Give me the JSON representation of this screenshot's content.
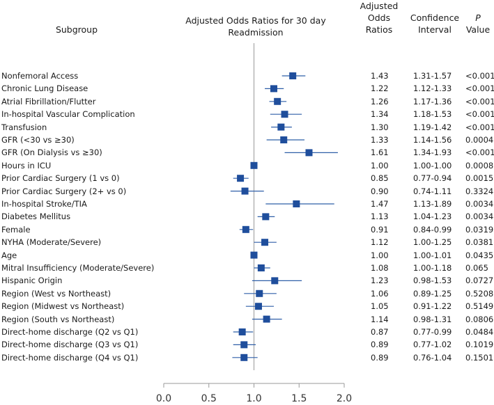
{
  "chart_data": {
    "type": "forest",
    "title": "Adjusted Odds Ratios for 30 day Readmission",
    "headers": {
      "subgroup": "Subgroup",
      "odds_ratio_line1": "Adjusted",
      "odds_ratio_line2": "Odds",
      "odds_ratio_line3": "Ratios",
      "ci_line1": "Confidence",
      "ci_line2": "Interval",
      "p_line1": "P",
      "p_line2": "Value"
    },
    "x_ticks": [
      "0.0",
      "0.5",
      "1.0",
      "1.5",
      "2.0"
    ],
    "xlim": [
      0,
      2
    ],
    "reference_line": 1.0,
    "rows": [
      {
        "label": "Nonfemoral Access",
        "or": 1.43,
        "low": 1.31,
        "high": 1.57,
        "or_text": "1.43",
        "ci_text": "1.31-1.57",
        "p_text": "<0.001"
      },
      {
        "label": "Chronic Lung Disease",
        "or": 1.22,
        "low": 1.12,
        "high": 1.33,
        "or_text": "1.22",
        "ci_text": "1.12-1.33",
        "p_text": "<0.001"
      },
      {
        "label": "Atrial Fibrillation/Flutter",
        "or": 1.26,
        "low": 1.17,
        "high": 1.36,
        "or_text": "1.26",
        "ci_text": "1.17-1.36",
        "p_text": "<0.001"
      },
      {
        "label": "In-hospital Vascular Complication",
        "or": 1.34,
        "low": 1.18,
        "high": 1.53,
        "or_text": "1.34",
        "ci_text": "1.18-1.53",
        "p_text": "<0.001"
      },
      {
        "label": "Transfusion",
        "or": 1.3,
        "low": 1.19,
        "high": 1.42,
        "or_text": "1.30",
        "ci_text": "1.19-1.42",
        "p_text": "<0.001"
      },
      {
        "label": "GFR (<30 vs ≥30)",
        "or": 1.33,
        "low": 1.14,
        "high": 1.56,
        "or_text": "1.33",
        "ci_text": "1.14-1.56",
        "p_text": "0.0004"
      },
      {
        "label": "GFR (On Dialysis vs ≥30)",
        "or": 1.61,
        "low": 1.34,
        "high": 1.93,
        "or_text": "1.61",
        "ci_text": "1.34-1.93",
        "p_text": "<0.001"
      },
      {
        "label": "Hours in ICU",
        "or": 1.0,
        "low": 1.0,
        "high": 1.0,
        "or_text": "1.00",
        "ci_text": "1.00-1.00",
        "p_text": "0.0008"
      },
      {
        "label": "Prior Cardiac Surgery (1 vs 0)",
        "or": 0.85,
        "low": 0.77,
        "high": 0.94,
        "or_text": "0.85",
        "ci_text": "0.77-0.94",
        "p_text": "0.0015"
      },
      {
        "label": "Prior Cardiac Surgery (2+ vs 0)",
        "or": 0.9,
        "low": 0.74,
        "high": 1.11,
        "or_text": "0.90",
        "ci_text": "0.74-1.11",
        "p_text": "0.3324"
      },
      {
        "label": "In-hospital Stroke/TIA",
        "or": 1.47,
        "low": 1.13,
        "high": 1.89,
        "or_text": "1.47",
        "ci_text": "1.13-1.89",
        "p_text": "0.0034"
      },
      {
        "label": "Diabetes Mellitus",
        "or": 1.13,
        "low": 1.04,
        "high": 1.23,
        "or_text": "1.13",
        "ci_text": "1.04-1.23",
        "p_text": "0.0034"
      },
      {
        "label": "Female",
        "or": 0.91,
        "low": 0.84,
        "high": 0.99,
        "or_text": "0.91",
        "ci_text": "0.84-0.99",
        "p_text": "0.0319"
      },
      {
        "label": "NYHA (Moderate/Severe)",
        "or": 1.12,
        "low": 1.0,
        "high": 1.25,
        "or_text": "1.12",
        "ci_text": "1.00-1.25",
        "p_text": "0.0381"
      },
      {
        "label": "Age",
        "or": 1.0,
        "low": 1.0,
        "high": 1.01,
        "or_text": "1.00",
        "ci_text": "1.00-1.01",
        "p_text": "0.0435"
      },
      {
        "label": "Mitral Insufficiency (Moderate/Severe)",
        "or": 1.08,
        "low": 1.0,
        "high": 1.18,
        "or_text": "1.08",
        "ci_text": "1.00-1.18",
        "p_text": "0.065"
      },
      {
        "label": "Hispanic Origin",
        "or": 1.23,
        "low": 0.98,
        "high": 1.53,
        "or_text": "1.23",
        "ci_text": "0.98-1.53",
        "p_text": "0.0727"
      },
      {
        "label": "Region (West vs Northeast)",
        "or": 1.06,
        "low": 0.89,
        "high": 1.25,
        "or_text": "1.06",
        "ci_text": "0.89-1.25",
        "p_text": "0.5208"
      },
      {
        "label": "Region (Midwest vs Northeast)",
        "or": 1.05,
        "low": 0.91,
        "high": 1.22,
        "or_text": "1.05",
        "ci_text": "0.91-1.22",
        "p_text": "0.5149"
      },
      {
        "label": "Region (South vs Northeast)",
        "or": 1.14,
        "low": 0.98,
        "high": 1.31,
        "or_text": "1.14",
        "ci_text": "0.98-1.31",
        "p_text": "0.0806"
      },
      {
        "label": "Direct-home discharge (Q2 vs Q1)",
        "or": 0.87,
        "low": 0.77,
        "high": 0.99,
        "or_text": "0.87",
        "ci_text": "0.77-0.99",
        "p_text": "0.0484"
      },
      {
        "label": "Direct-home discharge (Q3 vs Q1)",
        "or": 0.89,
        "low": 0.77,
        "high": 1.02,
        "or_text": "0.89",
        "ci_text": "0.77-1.02",
        "p_text": "0.1019"
      },
      {
        "label": "Direct-home discharge (Q4 vs Q1)",
        "or": 0.89,
        "low": 0.76,
        "high": 1.04,
        "or_text": "0.89",
        "ci_text": "0.76-1.04",
        "p_text": "0.1501"
      }
    ],
    "colors": {
      "marker": "#1f4e9c",
      "ci_line": "#2f5fa8",
      "reference": "#999999",
      "axis": "#999999"
    }
  }
}
